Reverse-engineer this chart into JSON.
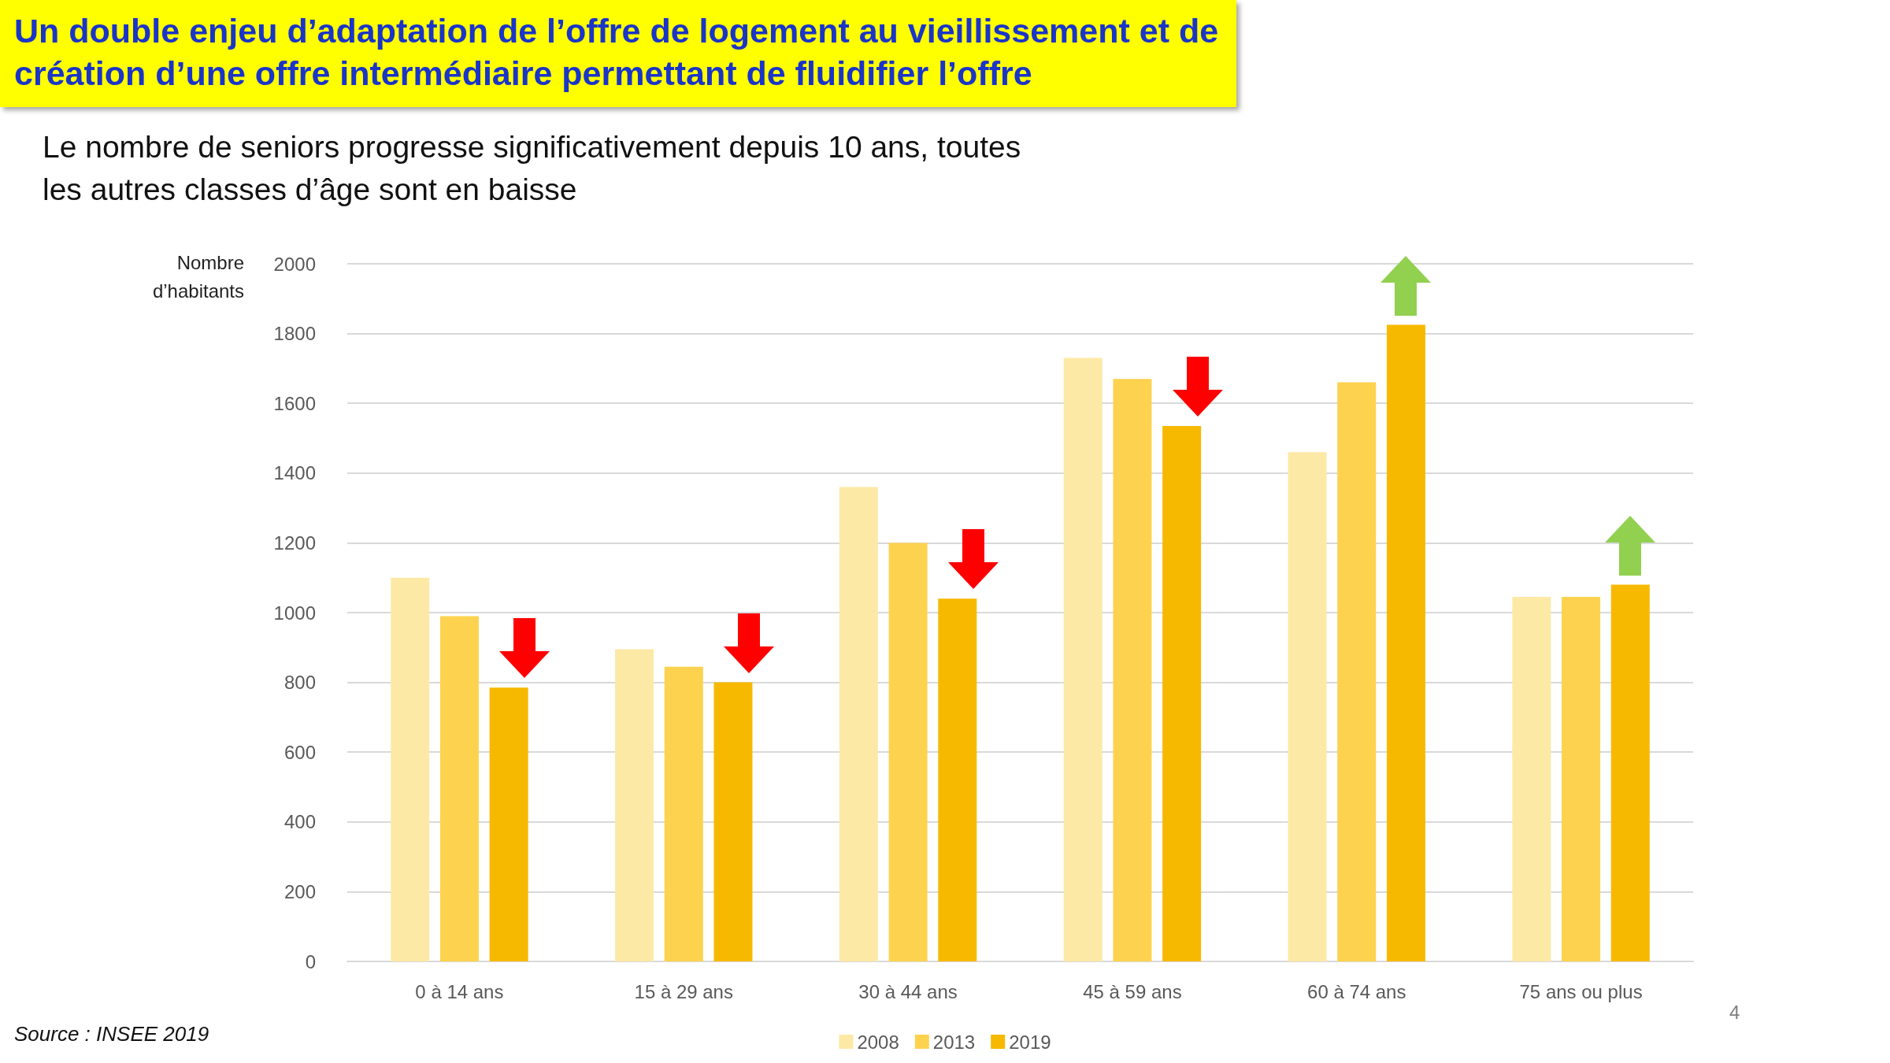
{
  "chart_data": {
    "type": "bar",
    "title": "Un double enjeu d’adaptation de l’offre de logement au vieillissement et de création d’une offre intermédiaire permettant de fluidifier l’offre",
    "subtitle": "Le nombre de seniors progresse significativement depuis 10 ans, toutes les autres classes d’âge sont en baisse",
    "ylabel": "Nombre d’habitants",
    "categories": [
      "0 à 14 ans",
      "15 à 29 ans",
      "30 à 44 ans",
      "45 à 59 ans",
      "60 à 74 ans",
      "75 ans ou plus"
    ],
    "series": [
      {
        "name": "2008",
        "color": "#fde9a6",
        "values": [
          1100,
          895,
          1360,
          1730,
          1460,
          1045
        ]
      },
      {
        "name": "2013",
        "color": "#fdd24f",
        "values": [
          990,
          845,
          1200,
          1670,
          1660,
          1045
        ]
      },
      {
        "name": "2019",
        "color": "#f7b900",
        "values": [
          785,
          800,
          1040,
          1535,
          1825,
          1080
        ]
      }
    ],
    "ylim": [
      0,
      2000
    ],
    "yticks": [
      0,
      200,
      400,
      600,
      800,
      1000,
      1200,
      1400,
      1600,
      1800,
      2000
    ],
    "grid": "y",
    "legend": "bottom",
    "annotations": [
      "Source : INSEE 2019",
      "4"
    ]
  }
}
